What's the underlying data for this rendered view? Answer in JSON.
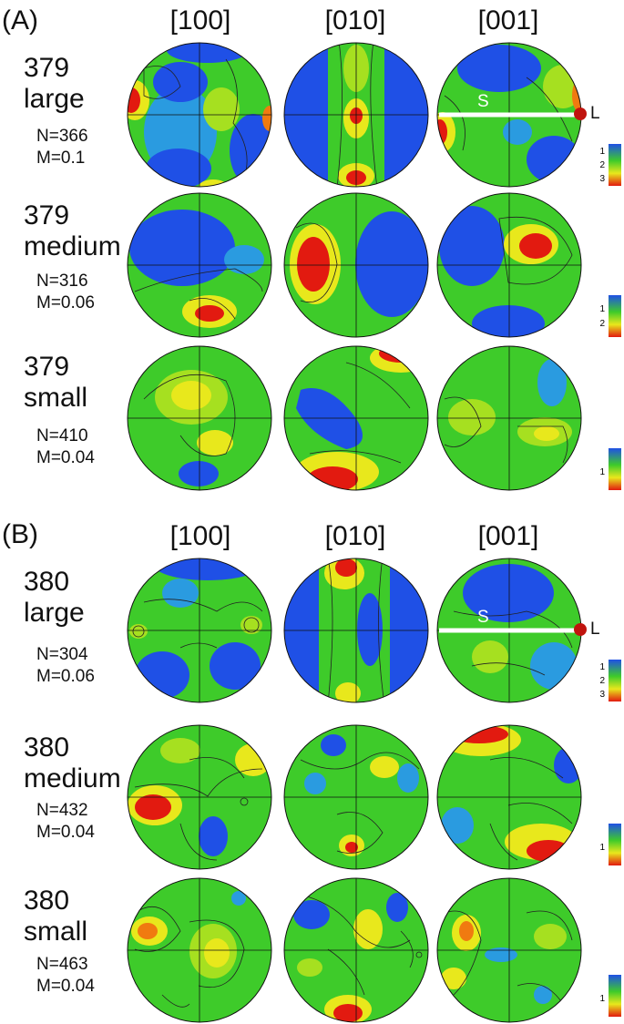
{
  "panels": [
    {
      "label": "(A)",
      "columns": [
        "[100]",
        "[010]",
        "[001]"
      ],
      "marker": {
        "S": "S",
        "L": "L"
      },
      "rows": [
        {
          "sample": "379",
          "size": "large",
          "N": "N=366",
          "M": "M=0.1",
          "legend_ticks": [
            "1",
            "2",
            "3"
          ]
        },
        {
          "sample": "379",
          "size": "medium",
          "N": "N=316",
          "M": "M=0.06",
          "legend_ticks": [
            "1",
            "2"
          ]
        },
        {
          "sample": "379",
          "size": "small",
          "N": "N=410",
          "M": "M=0.04",
          "legend_ticks": [
            "1"
          ]
        }
      ]
    },
    {
      "label": "(B)",
      "columns": [
        "[100]",
        "[010]",
        "[001]"
      ],
      "marker": {
        "S": "S",
        "L": "L"
      },
      "rows": [
        {
          "sample": "380",
          "size": "large",
          "N": "N=304",
          "M": "M=0.06",
          "legend_ticks": [
            "1",
            "2",
            "3"
          ]
        },
        {
          "sample": "380",
          "size": "medium",
          "N": "N=432",
          "M": "M=0.04",
          "legend_ticks": [
            "1"
          ]
        },
        {
          "sample": "380",
          "size": "small",
          "N": "N=463",
          "M": "M=0.04",
          "legend_ticks": [
            "1"
          ]
        }
      ]
    }
  ],
  "colors": {
    "low": "#1f50e6",
    "mid": "#3ecb2a",
    "midhigh": "#e8e81c",
    "high": "#e21a10",
    "marker_dot": "#c0140e",
    "trace": "#ffffff"
  }
}
